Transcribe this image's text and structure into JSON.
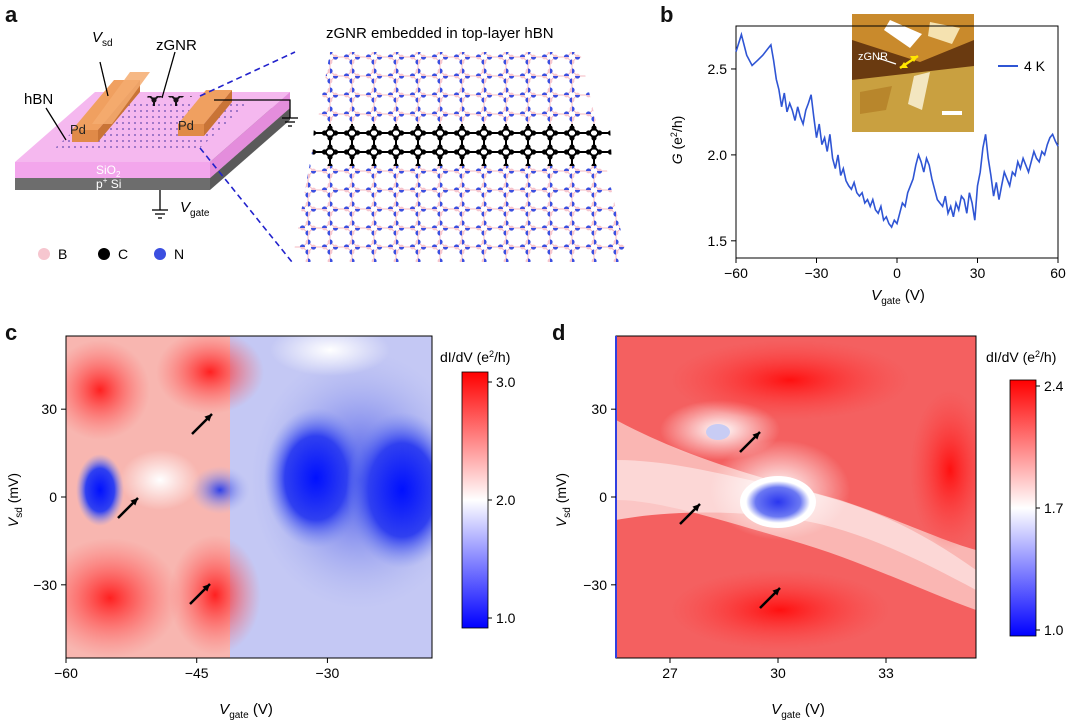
{
  "panels": {
    "a": {
      "letter": "a",
      "title": "zGNR embedded in top-layer hBN",
      "labels": {
        "vsd": "V",
        "vsd_sub": "sd",
        "zgnr": "zGNR",
        "hbn": "hBN",
        "pd_left": "Pd",
        "pd_right": "Pd",
        "sio2": "SiO",
        "sio2_sub": "2",
        "psi": "p",
        "psi_sup": "+",
        "psi_rest": " Si",
        "vgate": "V",
        "vgate_sub": "gate"
      },
      "legend": [
        {
          "label": "B",
          "color": "#f6c6cf"
        },
        {
          "label": "C",
          "color": "#000000"
        },
        {
          "label": "N",
          "color": "#3b4fe0"
        }
      ]
    },
    "b": {
      "letter": "b"
    },
    "c": {
      "letter": "c"
    },
    "d": {
      "letter": "d"
    }
  },
  "chart_data": [
    {
      "id": "b",
      "type": "line",
      "xlabel": "V",
      "xlabel_sub": "gate",
      "xlabel_unit": " (V)",
      "ylabel": "G",
      "ylabel_unit": " (e",
      "ylabel_sup": "2",
      "ylabel_tail": "/h)",
      "xlim": [
        -60,
        60
      ],
      "ylim": [
        1.4,
        2.75
      ],
      "xticks": [
        -60,
        -30,
        0,
        30,
        60
      ],
      "yticks": [
        1.5,
        2.0,
        2.5
      ],
      "ytick_labels": [
        "1.5",
        "2.0",
        "2.5"
      ],
      "series": [
        {
          "name": "4 K",
          "color": "#2f55d4",
          "x": [
            -60,
            -58,
            -56,
            -54,
            -52,
            -50,
            -48,
            -47,
            -46,
            -45,
            -44,
            -43,
            -42,
            -41,
            -40,
            -39,
            -38,
            -37,
            -36,
            -35,
            -34,
            -33,
            -32,
            -31,
            -30,
            -29,
            -28,
            -27,
            -26,
            -25,
            -24,
            -23,
            -22,
            -21,
            -20,
            -19,
            -18,
            -17,
            -16,
            -15,
            -14,
            -13,
            -12,
            -11,
            -10,
            -9,
            -8,
            -7,
            -6,
            -5,
            -4,
            -3,
            -2,
            -1,
            0,
            1,
            2,
            3,
            4,
            5,
            6,
            7,
            8,
            9,
            10,
            11,
            12,
            13,
            14,
            15,
            16,
            17,
            18,
            19,
            20,
            21,
            22,
            23,
            24,
            25,
            26,
            27,
            28,
            29,
            30,
            31,
            32,
            33,
            34,
            35,
            36,
            37,
            38,
            39,
            40,
            41,
            42,
            43,
            44,
            45,
            46,
            47,
            48,
            49,
            50,
            51,
            52,
            53,
            54,
            55,
            56,
            57,
            58,
            59,
            60
          ],
          "y": [
            2.6,
            2.7,
            2.58,
            2.52,
            2.55,
            2.58,
            2.62,
            2.64,
            2.55,
            2.44,
            2.38,
            2.28,
            2.36,
            2.25,
            2.3,
            2.26,
            2.2,
            2.28,
            2.22,
            2.18,
            2.26,
            2.3,
            2.35,
            2.22,
            2.1,
            2.18,
            2.06,
            2.1,
            2.02,
            2.12,
            1.98,
            1.92,
            2.0,
            1.88,
            1.92,
            1.85,
            1.82,
            1.8,
            1.84,
            1.78,
            1.76,
            1.78,
            1.72,
            1.74,
            1.7,
            1.74,
            1.68,
            1.66,
            1.7,
            1.62,
            1.64,
            1.6,
            1.58,
            1.62,
            1.6,
            1.66,
            1.72,
            1.7,
            1.78,
            1.82,
            1.86,
            1.94,
            2.0,
            1.96,
            1.9,
            1.98,
            1.94,
            1.86,
            1.8,
            1.74,
            1.72,
            1.7,
            1.76,
            1.66,
            1.7,
            1.64,
            1.72,
            1.68,
            1.76,
            1.74,
            1.66,
            1.78,
            1.72,
            1.62,
            1.82,
            1.9,
            2.04,
            2.12,
            1.98,
            1.88,
            1.76,
            1.84,
            1.74,
            1.82,
            1.9,
            1.86,
            1.82,
            1.9,
            1.88,
            1.96,
            1.92,
            1.98,
            1.94,
            1.9,
            1.96,
            2.02,
            1.98,
            1.96,
            2.02,
            2.0,
            2.06,
            2.1,
            2.12,
            2.08,
            2.05
          ]
        }
      ],
      "inset": {
        "label": "zGNR"
      }
    },
    {
      "id": "c",
      "type": "heatmap",
      "xlabel": "V",
      "xlabel_sub": "gate",
      "xlabel_unit": " (V)",
      "ylabel": "V",
      "ylabel_sub": "sd",
      "ylabel_unit": " (mV)",
      "xlim": [
        -60,
        -18
      ],
      "ylim": [
        -55,
        55
      ],
      "xticks": [
        -60,
        -45,
        -30
      ],
      "yticks": [
        -30,
        0,
        30
      ],
      "colorbar": {
        "title": "dI/dV (e",
        "title_sup": "2",
        "title_tail": "/h)",
        "min": 1.0,
        "max": 3.0,
        "ticks": [
          "3.0",
          "2.0",
          "1.0"
        ]
      },
      "arrows": 4
    },
    {
      "id": "d",
      "type": "heatmap",
      "xlabel": "V",
      "xlabel_sub": "gate",
      "xlabel_unit": " (V)",
      "ylabel": "V",
      "ylabel_sub": "sd",
      "ylabel_unit": " (mV)",
      "xlim": [
        25.5,
        35.5
      ],
      "ylim": [
        -55,
        55
      ],
      "xticks": [
        27,
        30,
        33
      ],
      "yticks": [
        -30,
        0,
        30
      ],
      "colorbar": {
        "title": "dI/dV (e",
        "title_sup": "2",
        "title_tail": "/h)",
        "min": 1.0,
        "max": 2.4,
        "ticks": [
          "2.4",
          "1.7",
          "1.0"
        ]
      },
      "arrows": 3
    }
  ]
}
